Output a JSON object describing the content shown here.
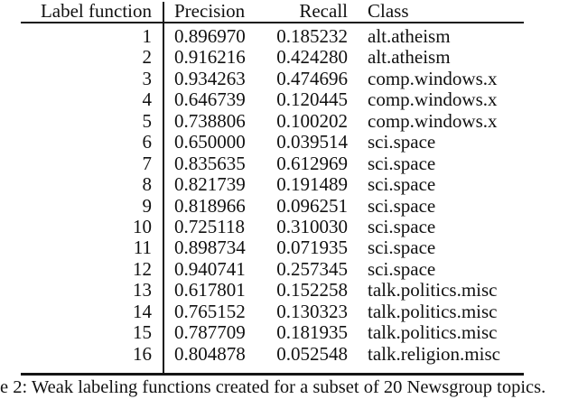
{
  "table": {
    "headers": {
      "label_function": "Label function",
      "precision": "Precision",
      "recall": "Recall",
      "class": "Class"
    },
    "rows": [
      {
        "id": "1",
        "precision": "0.896970",
        "recall": "0.185232",
        "class": "alt.atheism"
      },
      {
        "id": "2",
        "precision": "0.916216",
        "recall": "0.424280",
        "class": "alt.atheism"
      },
      {
        "id": "3",
        "precision": "0.934263",
        "recall": "0.474696",
        "class": "comp.windows.x"
      },
      {
        "id": "4",
        "precision": "0.646739",
        "recall": "0.120445",
        "class": "comp.windows.x"
      },
      {
        "id": "5",
        "precision": "0.738806",
        "recall": "0.100202",
        "class": "comp.windows.x"
      },
      {
        "id": "6",
        "precision": "0.650000",
        "recall": "0.039514",
        "class": "sci.space"
      },
      {
        "id": "7",
        "precision": "0.835635",
        "recall": "0.612969",
        "class": "sci.space"
      },
      {
        "id": "8",
        "precision": "0.821739",
        "recall": "0.191489",
        "class": "sci.space"
      },
      {
        "id": "9",
        "precision": "0.818966",
        "recall": "0.096251",
        "class": "sci.space"
      },
      {
        "id": "10",
        "precision": "0.725118",
        "recall": "0.310030",
        "class": "sci.space"
      },
      {
        "id": "11",
        "precision": "0.898734",
        "recall": "0.071935",
        "class": "sci.space"
      },
      {
        "id": "12",
        "precision": "0.940741",
        "recall": "0.257345",
        "class": "sci.space"
      },
      {
        "id": "13",
        "precision": "0.617801",
        "recall": "0.152258",
        "class": "talk.politics.misc"
      },
      {
        "id": "14",
        "precision": "0.765152",
        "recall": "0.130323",
        "class": "talk.politics.misc"
      },
      {
        "id": "15",
        "precision": "0.787709",
        "recall": "0.181935",
        "class": "talk.politics.misc"
      },
      {
        "id": "16",
        "precision": "0.804878",
        "recall": "0.052548",
        "class": "talk.religion.misc"
      }
    ]
  },
  "caption": "e 2: Weak labeling functions created for a subset of 20 Newsgroup topics.",
  "colors": {
    "text": "#111111",
    "rule": "#151515",
    "background": "#ffffff"
  }
}
